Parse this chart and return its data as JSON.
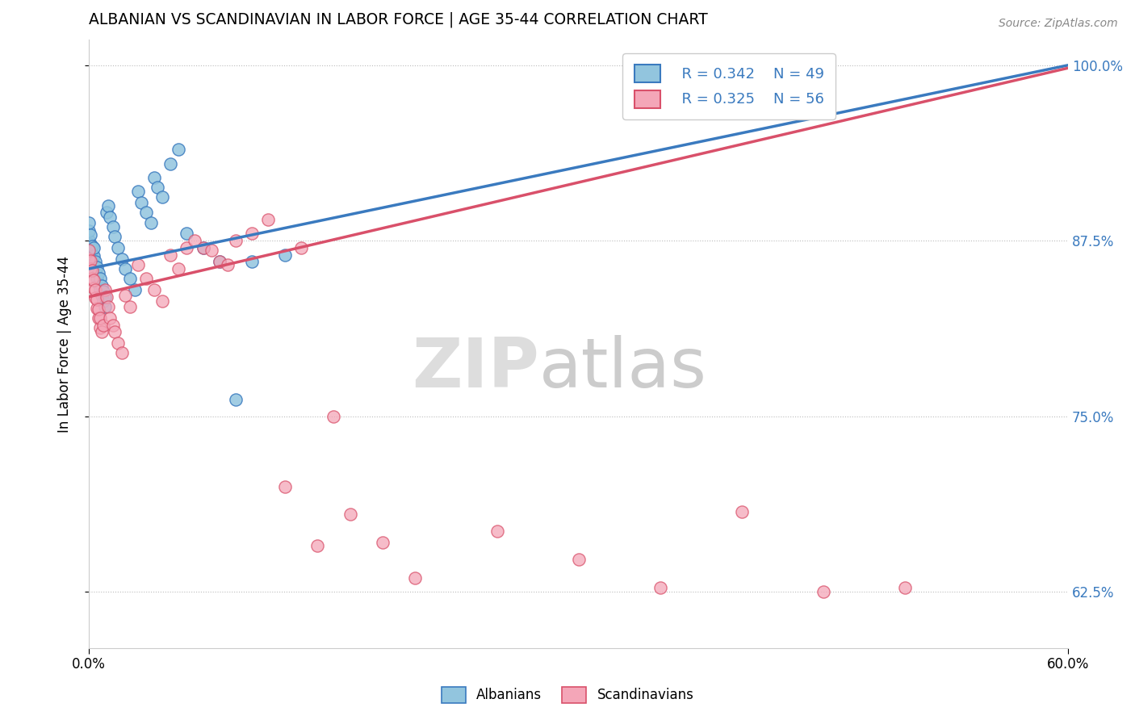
{
  "title": "ALBANIAN VS SCANDINAVIAN IN LABOR FORCE | AGE 35-44 CORRELATION CHART",
  "source_text": "Source: ZipAtlas.com",
  "ylabel": "In Labor Force | Age 35-44",
  "xmin": 0.0,
  "xmax": 0.6,
  "ymin": 0.585,
  "ymax": 1.018,
  "ytick_values": [
    0.625,
    0.75,
    0.875,
    1.0
  ],
  "ytick_labels": [
    "62.5%",
    "75.0%",
    "87.5%",
    "100.0%"
  ],
  "watermark_zip": "ZIP",
  "watermark_atlas": "atlas",
  "legend_R_albanian": "R = 0.342",
  "legend_N_albanian": "N = 49",
  "legend_R_scandinavian": "R = 0.325",
  "legend_N_scandinavian": "N = 56",
  "color_albanian": "#92c5de",
  "color_scandinavian": "#f4a6b8",
  "line_color_albanian": "#3a7abf",
  "line_color_scandinavian": "#d9506a",
  "alb_line_x0": 0.0,
  "alb_line_y0": 0.855,
  "alb_line_x1": 0.6,
  "alb_line_y1": 1.0,
  "sca_line_x0": 0.0,
  "sca_line_y0": 0.835,
  "sca_line_x1": 0.6,
  "sca_line_y1": 0.998,
  "albanian_x": [
    0.0,
    0.0,
    0.0,
    0.001,
    0.001,
    0.002,
    0.002,
    0.003,
    0.003,
    0.003,
    0.004,
    0.004,
    0.005,
    0.005,
    0.006,
    0.006,
    0.007,
    0.007,
    0.008,
    0.008,
    0.009,
    0.009,
    0.01,
    0.01,
    0.011,
    0.012,
    0.013,
    0.015,
    0.016,
    0.018,
    0.02,
    0.022,
    0.025,
    0.028,
    0.03,
    0.032,
    0.035,
    0.038,
    0.04,
    0.042,
    0.045,
    0.05,
    0.055,
    0.06,
    0.07,
    0.08,
    0.09,
    0.1,
    0.12
  ],
  "albanian_y": [
    0.875,
    0.882,
    0.888,
    0.872,
    0.879,
    0.865,
    0.871,
    0.858,
    0.864,
    0.87,
    0.852,
    0.86,
    0.848,
    0.856,
    0.844,
    0.852,
    0.84,
    0.848,
    0.836,
    0.843,
    0.832,
    0.839,
    0.828,
    0.835,
    0.895,
    0.9,
    0.892,
    0.885,
    0.878,
    0.87,
    0.862,
    0.855,
    0.848,
    0.84,
    0.91,
    0.902,
    0.895,
    0.888,
    0.92,
    0.913,
    0.906,
    0.93,
    0.94,
    0.88,
    0.87,
    0.86,
    0.762,
    0.86,
    0.865
  ],
  "scandinavian_x": [
    0.0,
    0.0,
    0.001,
    0.001,
    0.002,
    0.002,
    0.003,
    0.003,
    0.004,
    0.004,
    0.005,
    0.005,
    0.006,
    0.006,
    0.007,
    0.007,
    0.008,
    0.009,
    0.01,
    0.011,
    0.012,
    0.013,
    0.015,
    0.016,
    0.018,
    0.02,
    0.022,
    0.025,
    0.03,
    0.035,
    0.04,
    0.045,
    0.05,
    0.055,
    0.06,
    0.065,
    0.07,
    0.075,
    0.08,
    0.085,
    0.09,
    0.1,
    0.11,
    0.12,
    0.13,
    0.14,
    0.15,
    0.16,
    0.18,
    0.2,
    0.25,
    0.3,
    0.35,
    0.4,
    0.45,
    0.5
  ],
  "scandinavian_y": [
    0.862,
    0.868,
    0.855,
    0.861,
    0.848,
    0.854,
    0.841,
    0.847,
    0.834,
    0.84,
    0.827,
    0.833,
    0.82,
    0.826,
    0.813,
    0.82,
    0.81,
    0.815,
    0.84,
    0.835,
    0.828,
    0.82,
    0.815,
    0.81,
    0.802,
    0.795,
    0.836,
    0.828,
    0.858,
    0.848,
    0.84,
    0.832,
    0.865,
    0.855,
    0.87,
    0.875,
    0.87,
    0.868,
    0.86,
    0.858,
    0.875,
    0.88,
    0.89,
    0.7,
    0.87,
    0.658,
    0.75,
    0.68,
    0.66,
    0.635,
    0.668,
    0.648,
    0.628,
    0.682,
    0.625,
    0.628
  ]
}
